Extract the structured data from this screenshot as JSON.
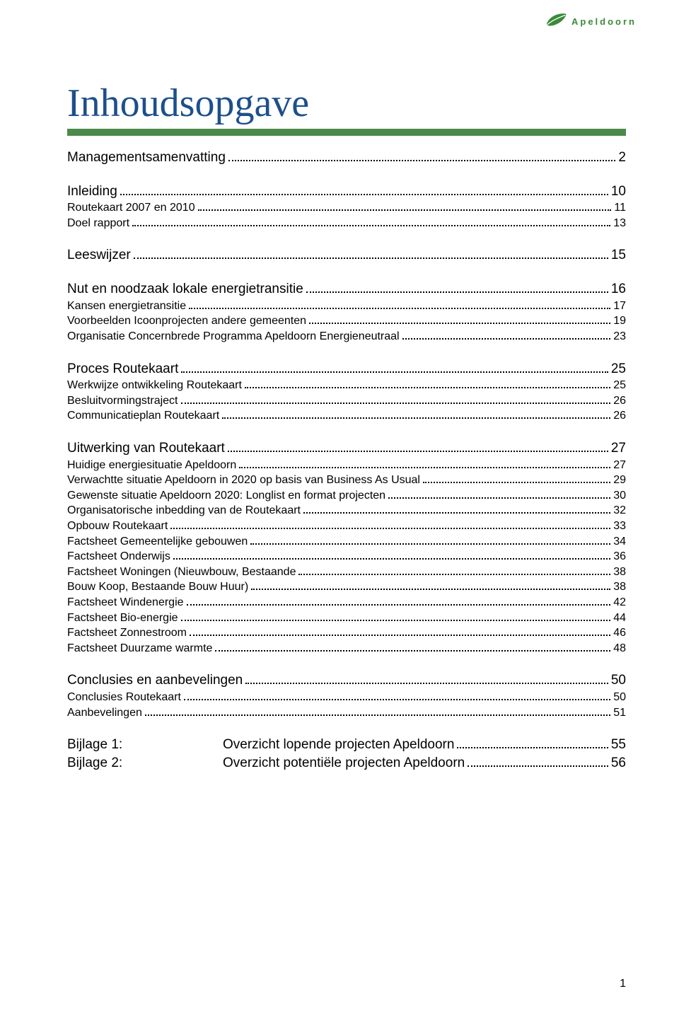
{
  "brand": "Apeldoorn",
  "page_title": "Inhoudsopgave",
  "colors": {
    "title_color": "#1d4f8b",
    "rule_color": "#4b8a4b",
    "brand_color": "#3a8a3a",
    "leader_color": "#000000",
    "background": "#ffffff"
  },
  "blocks": [
    {
      "rows": [
        {
          "level": 1,
          "label": "Managementsamenvatting",
          "page": "2"
        }
      ]
    },
    {
      "rows": [
        {
          "level": 1,
          "label": "Inleiding",
          "page": "10"
        },
        {
          "level": 2,
          "label": "Routekaart 2007 en 2010",
          "page": "11"
        },
        {
          "level": 2,
          "label": "Doel rapport",
          "page": "13"
        }
      ]
    },
    {
      "rows": [
        {
          "level": 1,
          "label": "Leeswijzer",
          "page": "15"
        }
      ]
    },
    {
      "rows": [
        {
          "level": 1,
          "label": "Nut en noodzaak lokale energietransitie",
          "page": "16"
        },
        {
          "level": 2,
          "label": "Kansen energietransitie",
          "page": "17"
        },
        {
          "level": 2,
          "label": "Voorbeelden Icoonprojecten andere gemeenten",
          "page": "19"
        },
        {
          "level": 2,
          "label": "Organisatie Concernbrede Programma Apeldoorn Energieneutraal",
          "page": "23"
        }
      ]
    },
    {
      "rows": [
        {
          "level": 1,
          "label": "Proces Routekaart",
          "page": "25"
        },
        {
          "level": 2,
          "label": "Werkwijze ontwikkeling Routekaart",
          "page": "25"
        },
        {
          "level": 2,
          "label": "Besluitvormingstraject",
          "page": "26"
        },
        {
          "level": 2,
          "label": "Communicatieplan Routekaart",
          "page": "26"
        }
      ]
    },
    {
      "rows": [
        {
          "level": 1,
          "label": "Uitwerking van Routekaart",
          "page": "27"
        },
        {
          "level": 2,
          "label": "Huidige energiesituatie Apeldoorn",
          "page": "27"
        },
        {
          "level": 2,
          "label": "Verwachtte situatie Apeldoorn in 2020 op basis van Business As Usual",
          "page": "29"
        },
        {
          "level": 2,
          "label": "Gewenste situatie Apeldoorn 2020: Longlist en format projecten",
          "page": "30"
        },
        {
          "level": 2,
          "label": "Organisatorische inbedding van de Routekaart",
          "page": "32"
        },
        {
          "level": 2,
          "label": "Opbouw Routekaart",
          "page": "33"
        },
        {
          "level": 2,
          "label": "Factsheet Gemeentelijke gebouwen",
          "page": "34"
        },
        {
          "level": 2,
          "label": "Factsheet Onderwijs",
          "page": "36"
        },
        {
          "level": 2,
          "label": "Factsheet Woningen (Nieuwbouw, Bestaande",
          "page": "38"
        },
        {
          "level": 2,
          "label": "Bouw Koop, Bestaande Bouw Huur)",
          "page": "38"
        },
        {
          "level": 2,
          "label": "Factsheet Windenergie",
          "page": "42"
        },
        {
          "level": 2,
          "label": "Factsheet Bio-energie",
          "page": "44"
        },
        {
          "level": 2,
          "label": "Factsheet Zonnestroom",
          "page": "46"
        },
        {
          "level": 2,
          "label": "Factsheet Duurzame warmte",
          "page": "48"
        }
      ]
    },
    {
      "rows": [
        {
          "level": 1,
          "label": "Conclusies en aanbevelingen",
          "page": "50"
        },
        {
          "level": 2,
          "label": "Conclusies Routekaart",
          "page": "50"
        },
        {
          "level": 2,
          "label": "Aanbevelingen",
          "page": "51"
        }
      ]
    }
  ],
  "bijlagen": [
    {
      "key": "Bijlage 1:",
      "title": "Overzicht lopende projecten Apeldoorn",
      "page": "55"
    },
    {
      "key": "Bijlage 2:",
      "title": "Overzicht potentiële projecten Apeldoorn",
      "page": "56"
    }
  ],
  "footer_page_number": "1"
}
